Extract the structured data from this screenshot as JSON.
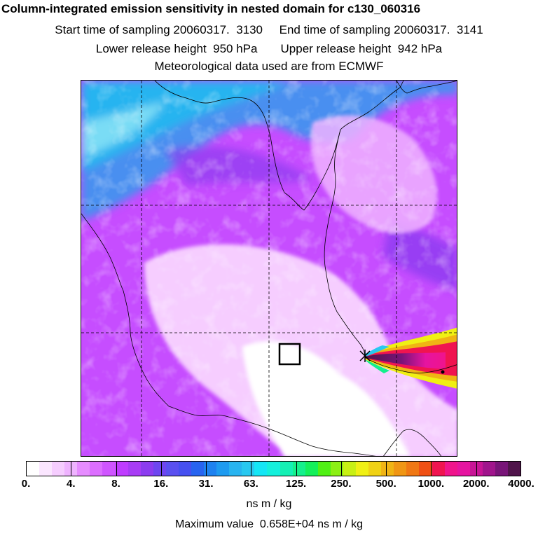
{
  "header": {
    "title": "Column-integrated emission sensitivity in nested domain for c130_060316",
    "sampling_line": "Start time of sampling 20060317.  3130     End time of sampling 20060317.  3141",
    "release_line": "Lower release height  950 hPa       Upper release height  942 hPa",
    "met_line": "Meteorological data used are from ECMWF"
  },
  "colorbar": {
    "segments": [
      "#ffffff",
      "#fbe6ff",
      "#f6cdff",
      "#efb3ff",
      "#e68cff",
      "#dc6eff",
      "#cf55ff",
      "#bf3cff",
      "#a83cf5",
      "#8c3cf0",
      "#6e46f0",
      "#5a50f0",
      "#4650f0",
      "#2864f0",
      "#1e82f0",
      "#1e9bf0",
      "#28b4f0",
      "#28c8f0",
      "#14e6f5",
      "#14f0dc",
      "#14f0b4",
      "#14f08c",
      "#14f05a",
      "#50f014",
      "#8cf014",
      "#c8f014",
      "#f0f014",
      "#f0d214",
      "#f0b414",
      "#f09614",
      "#f07814",
      "#f05014",
      "#f01450",
      "#f0148c",
      "#e614a0",
      "#c81496",
      "#a0148c",
      "#781478",
      "#50144b"
    ],
    "tick_labels": [
      "0.",
      "4.",
      "8.",
      "16.",
      "31.",
      "63.",
      "125.",
      "250.",
      "500.",
      "1000.",
      "2000.",
      "4000."
    ],
    "unit": "ns m / kg"
  },
  "footer": {
    "max_value_text": "Maximum value  0.658E+04 ns m / kg"
  },
  "map": {
    "marker": "receptor-box",
    "source_point": "star"
  }
}
